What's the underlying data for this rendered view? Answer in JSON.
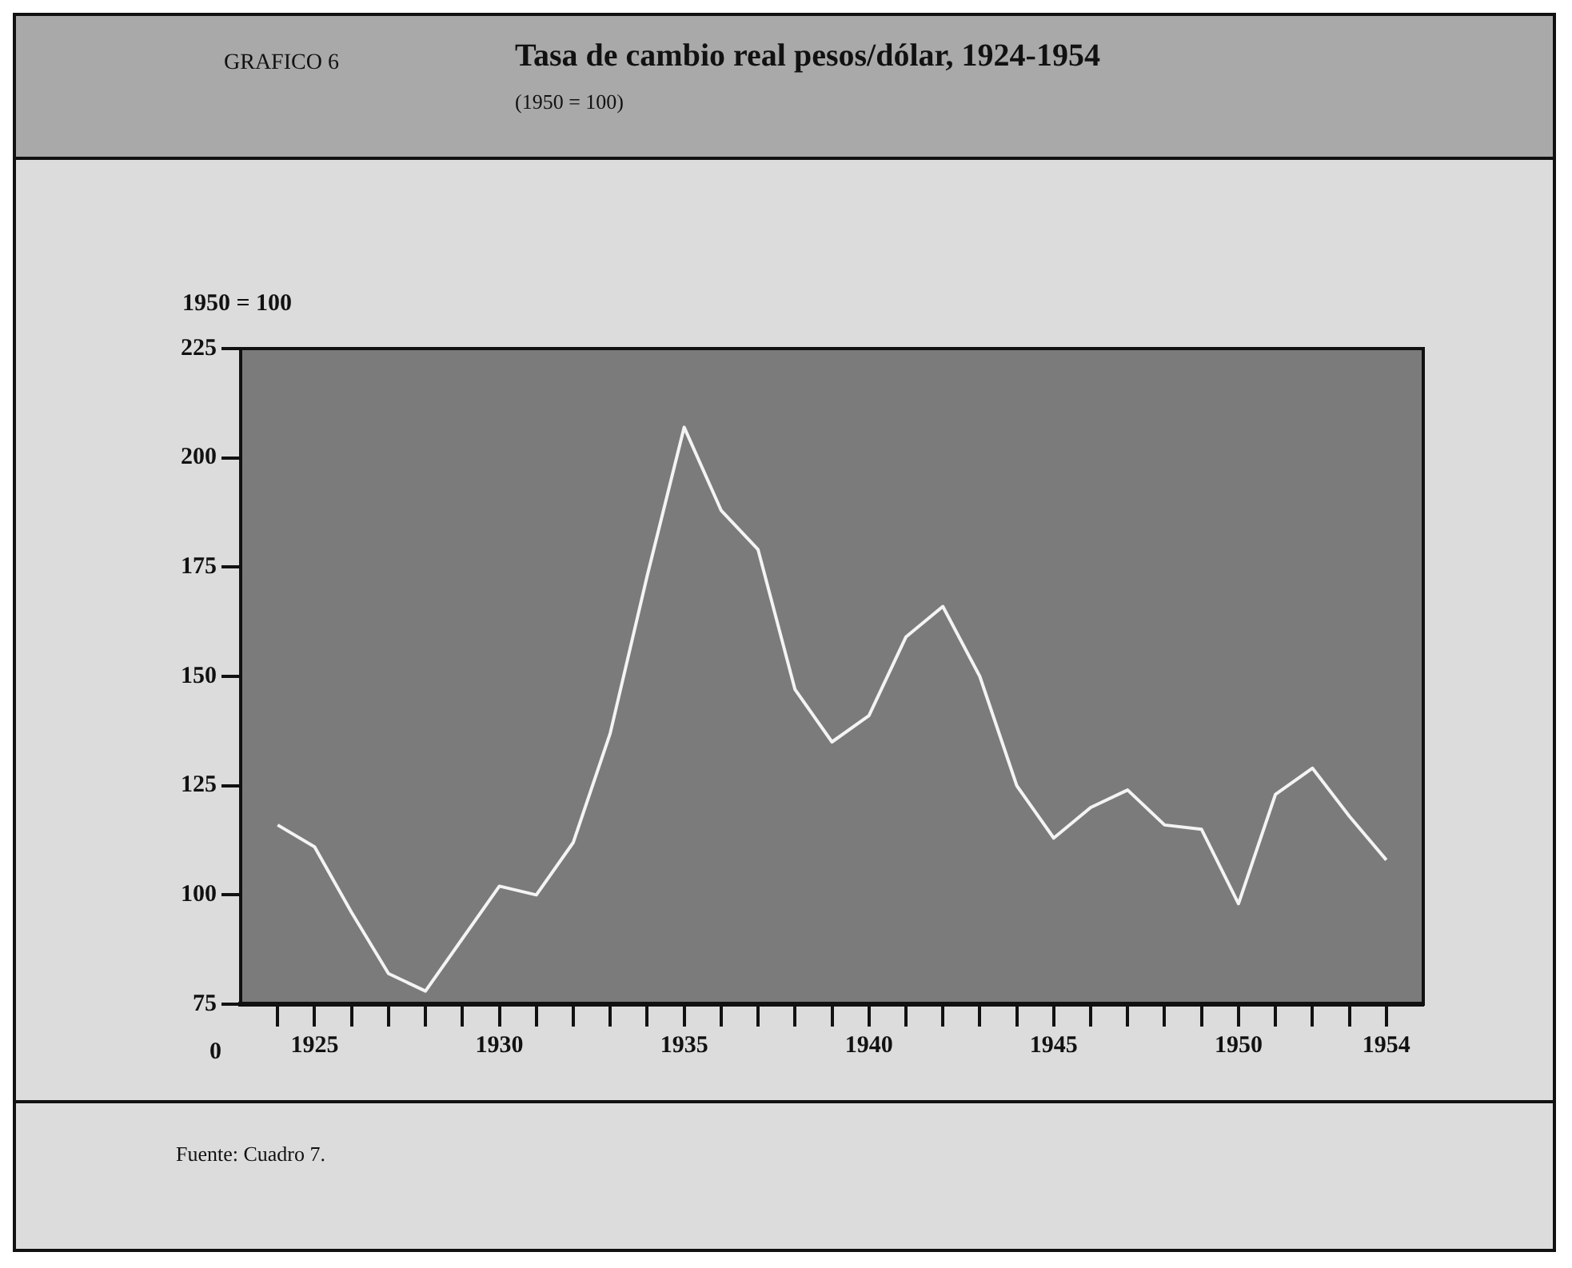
{
  "chart_data": {
    "type": "line",
    "title": "Tasa de cambio real pesos/dólar, 1924-1954",
    "subtitle": "(1950 = 100)",
    "ylabel": "1950 = 100",
    "annotations": [
      "GRAFICO 6",
      "Fuente: Cuadro 7.",
      "0"
    ],
    "x": [
      1924,
      1925,
      1926,
      1927,
      1928,
      1929,
      1930,
      1931,
      1932,
      1933,
      1934,
      1935,
      1936,
      1937,
      1938,
      1939,
      1940,
      1941,
      1942,
      1943,
      1944,
      1945,
      1946,
      1947,
      1948,
      1949,
      1950,
      1951,
      1952,
      1953,
      1954
    ],
    "series": [
      {
        "color": "#f4f4f4",
        "values": [
          116,
          111,
          96,
          82,
          78,
          90,
          102,
          100,
          112,
          137,
          173,
          207,
          188,
          179,
          147,
          135,
          141,
          159,
          166,
          150,
          125,
          113,
          120,
          124,
          116,
          115,
          98,
          123,
          129,
          118,
          108
        ]
      }
    ],
    "xlim": [
      1923,
      1955
    ],
    "xticks": [
      {
        "value": 1924,
        "label": null
      },
      1925,
      {
        "value": 1926,
        "label": null
      },
      {
        "value": 1927,
        "label": null
      },
      {
        "value": 1928,
        "label": null
      },
      {
        "value": 1929,
        "label": null
      },
      1930,
      {
        "value": 1931,
        "label": null
      },
      {
        "value": 1932,
        "label": null
      },
      {
        "value": 1933,
        "label": null
      },
      {
        "value": 1934,
        "label": null
      },
      1935,
      {
        "value": 1936,
        "label": null
      },
      {
        "value": 1937,
        "label": null
      },
      {
        "value": 1938,
        "label": null
      },
      {
        "value": 1939,
        "label": null
      },
      1940,
      {
        "value": 1941,
        "label": null
      },
      {
        "value": 1942,
        "label": null
      },
      {
        "value": 1943,
        "label": null
      },
      {
        "value": 1944,
        "label": null
      },
      1945,
      {
        "value": 1946,
        "label": null
      },
      {
        "value": 1947,
        "label": null
      },
      {
        "value": 1948,
        "label": null
      },
      {
        "value": 1949,
        "label": null
      },
      1950,
      {
        "value": 1951,
        "label": null
      },
      {
        "value": 1952,
        "label": null
      },
      {
        "value": 1953,
        "label": null
      },
      1954
    ],
    "ylim": [
      75,
      225
    ],
    "yticks": [
      75,
      100,
      125,
      150,
      175,
      200,
      225
    ],
    "grid": false,
    "legend": false,
    "marker": "none",
    "line_style": "solid"
  }
}
